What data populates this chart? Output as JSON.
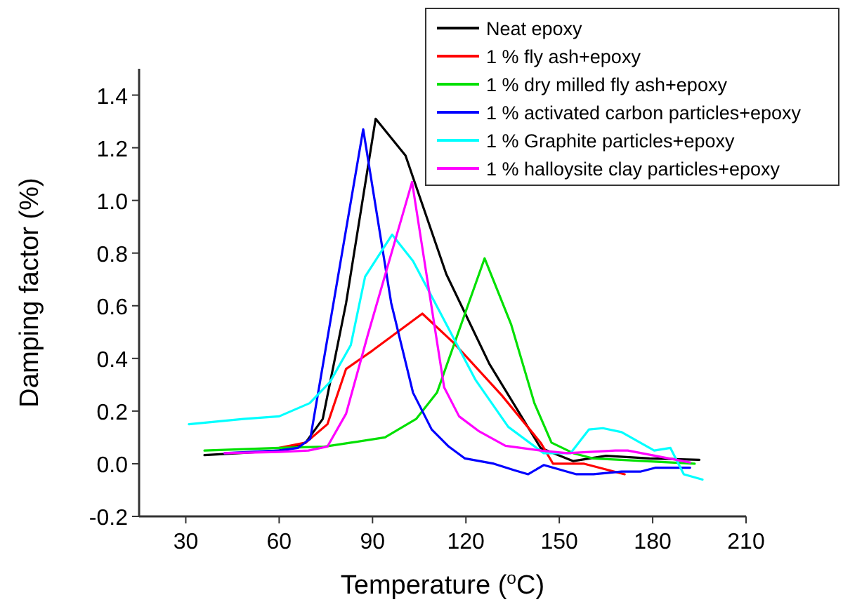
{
  "chart_data": {
    "type": "line",
    "xlabel": "Temperature ($^{o}$C)",
    "ylabel": "Damping factor (%)",
    "xlim": [
      15,
      210
    ],
    "ylim": [
      -0.2,
      1.5
    ],
    "xticks": [
      30,
      60,
      90,
      120,
      150,
      180,
      210
    ],
    "yticks": [
      {
        "value": -0.2,
        "label": "-0.2"
      },
      {
        "value": 0,
        "label": "0.0"
      },
      {
        "value": 0.2,
        "label": "0.2"
      },
      {
        "value": 0.4,
        "label": "0.4"
      },
      {
        "value": 0.6,
        "label": "0.6"
      },
      {
        "value": 0.8,
        "label": "0.8"
      },
      {
        "value": 1,
        "label": "1.0"
      },
      {
        "value": 1.2,
        "label": "1.2"
      },
      {
        "value": 1.4,
        "label": "1.4"
      }
    ],
    "grid": false,
    "legend": "top right",
    "marker": "none",
    "line_style": "solid",
    "series": [
      {
        "name": "Neat epoxy",
        "color": "#000000",
        "x": [
          36,
          47,
          60,
          68.5,
          74,
          81.5,
          91,
          100.6,
          113.7,
          127.5,
          144,
          154.5,
          165,
          179,
          195
        ],
        "values": [
          0.033,
          0.04,
          0.05,
          0.08,
          0.17,
          0.61,
          1.31,
          1.17,
          0.72,
          0.38,
          0.06,
          0.01,
          0.03,
          0.02,
          0.015
        ]
      },
      {
        "name": "1 % fly ash+epoxy",
        "color": "#ff0000",
        "x": [
          60,
          68.5,
          75.5,
          81.5,
          90,
          106,
          116,
          131.5,
          144,
          148,
          158,
          171
        ],
        "values": [
          0.06,
          0.08,
          0.15,
          0.36,
          0.43,
          0.57,
          0.46,
          0.26,
          0.08,
          0,
          0,
          -0.04
        ]
      },
      {
        "name": "1 % dry milled fly ash+epoxy",
        "color": "#00e000",
        "x": [
          36,
          60,
          74.5,
          83,
          94,
          104,
          110.7,
          119.7,
          126,
          134.5,
          142,
          147.5,
          154.5,
          161,
          193.5
        ],
        "values": [
          0.05,
          0.06,
          0.065,
          0.08,
          0.1,
          0.17,
          0.27,
          0.57,
          0.78,
          0.53,
          0.23,
          0.08,
          0.04,
          0.02,
          0
        ]
      },
      {
        "name": "1 % activated carbon particles+epoxy",
        "color": "#0000ff",
        "x": [
          42.5,
          60,
          66,
          70,
          87,
          96,
          103,
          109,
          114.5,
          119.7,
          129,
          135.6,
          140,
          145,
          155.5,
          161,
          170,
          176,
          181,
          192
        ],
        "values": [
          0.04,
          0.05,
          0.06,
          0.095,
          1.27,
          0.61,
          0.27,
          0.13,
          0.065,
          0.02,
          0,
          -0.025,
          -0.04,
          -0.005,
          -0.04,
          -0.04,
          -0.03,
          -0.03,
          -0.015,
          -0.015
        ]
      },
      {
        "name": "1 % Graphite particles+epoxy",
        "color": "#00ffff",
        "x": [
          31,
          48.5,
          60,
          69.8,
          76.3,
          83,
          87.6,
          96.3,
          103,
          112.8,
          123,
          133.6,
          145,
          153.6,
          159.5,
          164,
          170,
          180.5,
          185.7,
          190,
          196
        ],
        "values": [
          0.15,
          0.17,
          0.18,
          0.23,
          0.31,
          0.45,
          0.71,
          0.87,
          0.77,
          0.55,
          0.32,
          0.14,
          0.04,
          0.04,
          0.13,
          0.135,
          0.12,
          0.05,
          0.06,
          -0.04,
          -0.06
        ]
      },
      {
        "name": "1 % halloysite clay particles+epoxy",
        "color": "#ff00ff",
        "x": [
          42.5,
          60,
          69.4,
          75.5,
          81.5,
          88.5,
          102.7,
          113,
          117.8,
          124,
          132.7,
          144,
          152.5,
          168,
          172,
          192
        ],
        "values": [
          0.04,
          0.045,
          0.05,
          0.065,
          0.19,
          0.49,
          1.07,
          0.29,
          0.18,
          0.125,
          0.068,
          0.05,
          0.04,
          0.05,
          0.05,
          0.005
        ]
      }
    ]
  }
}
